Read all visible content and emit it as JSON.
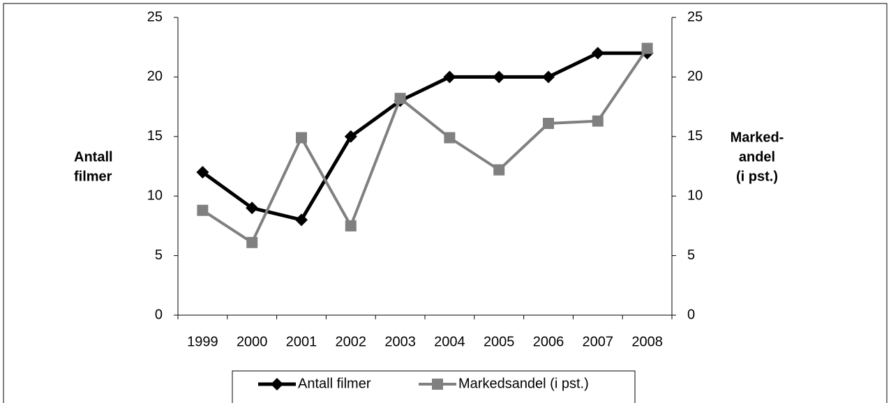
{
  "chart_data": {
    "type": "line",
    "categories": [
      "1999",
      "2000",
      "2001",
      "2002",
      "2003",
      "2004",
      "2005",
      "2006",
      "2007",
      "2008"
    ],
    "series": [
      {
        "name": "Antall filmer",
        "color": "#000000",
        "marker": "diamond",
        "values": [
          12,
          9,
          8,
          15,
          18,
          20,
          20,
          20,
          22,
          22
        ]
      },
      {
        "name": "Markedsandel (i pst.)",
        "color": "#808080",
        "marker": "square",
        "axis": "y2",
        "values": [
          8.8,
          6.1,
          14.9,
          7.5,
          18.2,
          14.9,
          12.2,
          16.1,
          16.3,
          22.4
        ]
      }
    ],
    "y_label": [
      "Antall",
      "filmer"
    ],
    "y2_label": [
      "Marked-",
      "andel",
      "(i pst.)"
    ],
    "ylim": [
      0,
      25
    ],
    "yticks": [
      0,
      5,
      10,
      15,
      20,
      25
    ],
    "y2lim": [
      0,
      25
    ],
    "y2ticks": [
      0,
      5,
      10,
      15,
      20,
      25
    ],
    "legend": "bottom"
  }
}
